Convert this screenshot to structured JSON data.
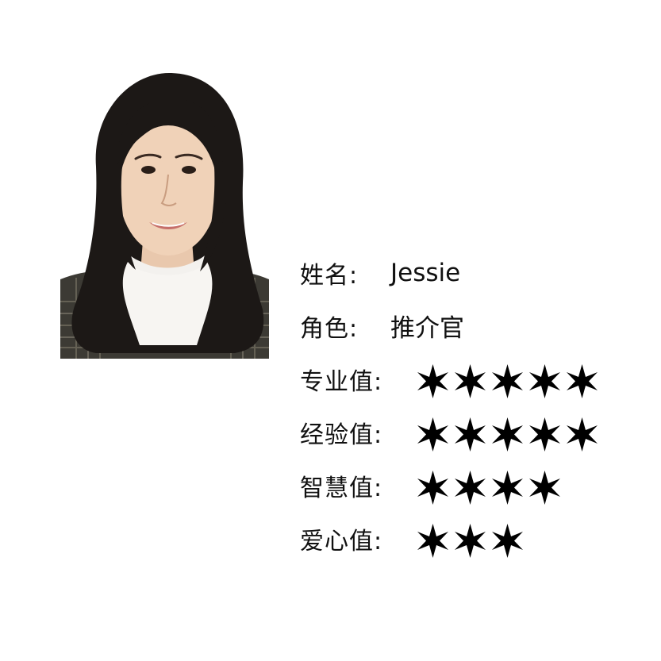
{
  "profile": {
    "name_label": "姓名:",
    "name_value": "Jessie",
    "role_label": "角色:",
    "role_value": "推介官"
  },
  "ratings": [
    {
      "label": "专业值:",
      "stars": 5
    },
    {
      "label": "经验值:",
      "stars": 5
    },
    {
      "label": "智慧值:",
      "stars": 4
    },
    {
      "label": "爱心值:",
      "stars": 3
    }
  ],
  "colors": {
    "text": "#111111",
    "star": "#000000",
    "background": "#ffffff"
  },
  "icons": {
    "rating_star": "six-point-star-icon"
  }
}
